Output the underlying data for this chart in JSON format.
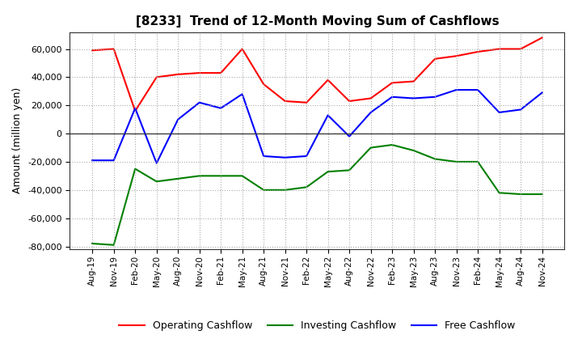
{
  "title": "[8233]  Trend of 12-Month Moving Sum of Cashflows",
  "ylabel": "Amount (million yen)",
  "ylim": [
    -82000,
    72000
  ],
  "yticks": [
    -80000,
    -60000,
    -40000,
    -20000,
    0,
    20000,
    40000,
    60000
  ],
  "x_labels": [
    "Aug-19",
    "Nov-19",
    "Feb-20",
    "May-20",
    "Aug-20",
    "Nov-20",
    "Feb-21",
    "May-21",
    "Aug-21",
    "Nov-21",
    "Feb-22",
    "May-22",
    "Aug-22",
    "Nov-22",
    "Feb-23",
    "May-23",
    "Aug-23",
    "Nov-23",
    "Feb-24",
    "May-24",
    "Aug-24",
    "Nov-24"
  ],
  "operating": [
    59000,
    60000,
    16000,
    40000,
    42000,
    43000,
    43000,
    60000,
    35000,
    23000,
    22000,
    38000,
    23000,
    25000,
    36000,
    37000,
    53000,
    55000,
    58000,
    60000,
    60000,
    68000
  ],
  "investing": [
    -78000,
    -79000,
    -25000,
    -34000,
    -32000,
    -30000,
    -30000,
    -30000,
    -40000,
    -40000,
    -38000,
    -27000,
    -26000,
    -10000,
    -8000,
    -12000,
    -18000,
    -20000,
    -20000,
    -42000,
    -43000,
    -43000
  ],
  "free": [
    -19000,
    -19000,
    18000,
    -21000,
    10000,
    22000,
    18000,
    28000,
    -16000,
    -17000,
    -16000,
    13000,
    -2000,
    15000,
    26000,
    25000,
    26000,
    31000,
    31000,
    15000,
    17000,
    29000
  ],
  "operating_color": "#FF0000",
  "investing_color": "#008000",
  "free_color": "#0000FF",
  "bg_color": "#FFFFFF",
  "grid_color": "#AAAAAA",
  "legend_labels": [
    "Operating Cashflow",
    "Investing Cashflow",
    "Free Cashflow"
  ]
}
